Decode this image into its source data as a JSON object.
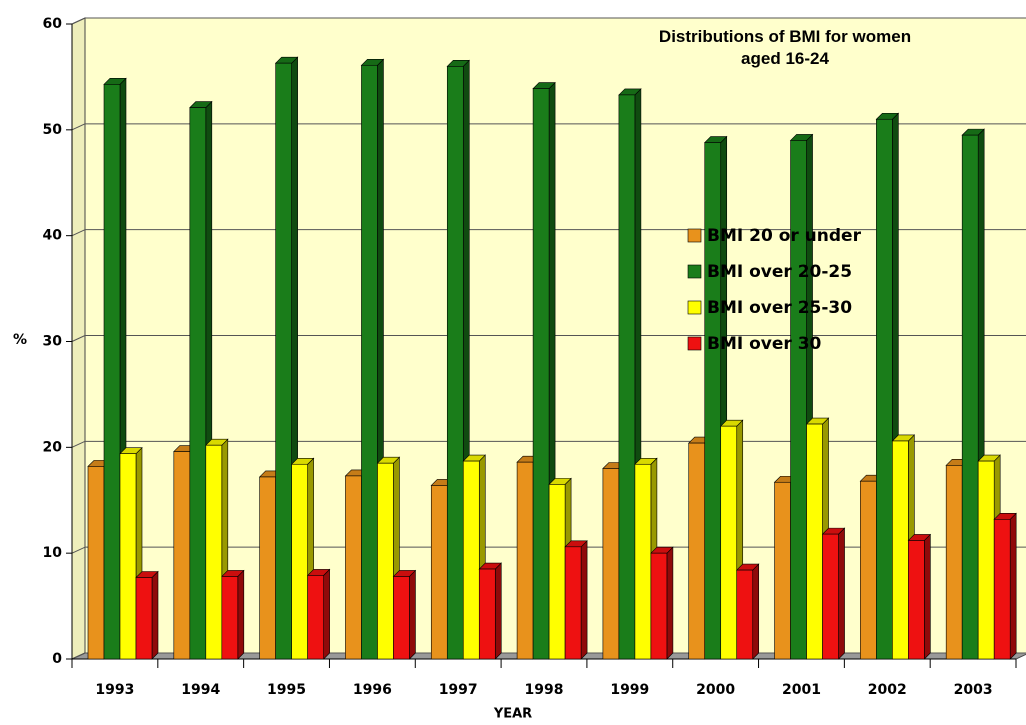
{
  "chart_data": {
    "type": "bar",
    "title": "Distributions of BMI for women aged 16-24",
    "x_label": "YEAR",
    "y_label": "%",
    "categories": [
      "1993",
      "1994",
      "1995",
      "1996",
      "1997",
      "1998",
      "1999",
      "2000",
      "2001",
      "2002",
      "2003"
    ],
    "series": [
      {
        "name": "BMI 20 or under",
        "color": "#e8921c",
        "values": [
          18.2,
          19.6,
          17.2,
          17.3,
          16.4,
          18.6,
          18.0,
          20.4,
          16.7,
          16.8,
          18.3
        ]
      },
      {
        "name": "BMI over 20-25",
        "color": "#1a7d1a",
        "values": [
          54.3,
          52.1,
          56.3,
          56.1,
          56.0,
          53.9,
          53.3,
          48.8,
          49.0,
          51.0,
          49.5
        ]
      },
      {
        "name": "BMI over 25-30",
        "color": "#ffff00",
        "values": [
          19.4,
          20.2,
          18.4,
          18.5,
          18.7,
          16.5,
          18.4,
          22.0,
          22.2,
          20.6,
          18.7
        ]
      },
      {
        "name": "BMI over 30",
        "color": "#ee1111",
        "values": [
          7.7,
          7.8,
          7.9,
          7.8,
          8.5,
          10.6,
          10.0,
          8.4,
          11.8,
          11.2,
          13.2
        ]
      }
    ],
    "ylim": [
      0,
      60
    ],
    "yticks": [
      0,
      10,
      20,
      30,
      40,
      50,
      60
    ],
    "grid": true
  }
}
